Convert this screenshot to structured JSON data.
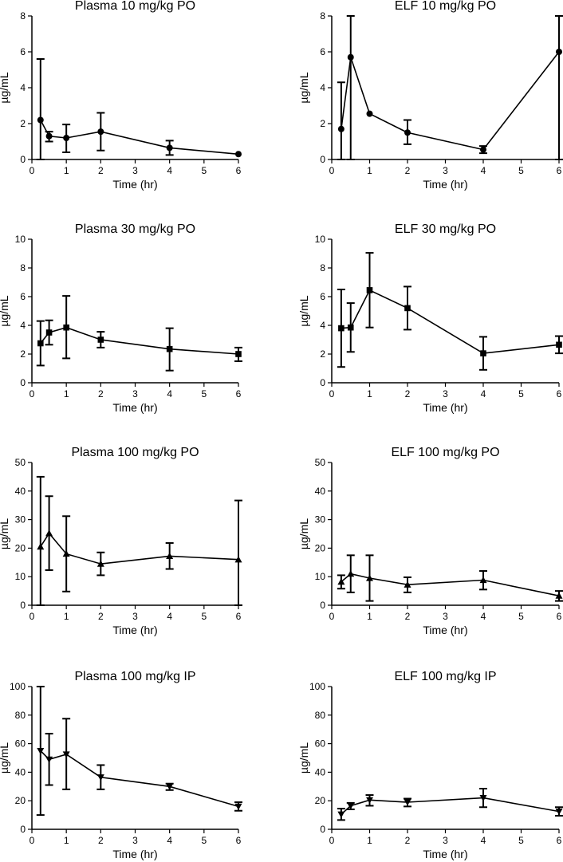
{
  "chart_data": [
    {
      "type": "line",
      "title": "Plasma 10 mg/kg PO",
      "xlabel": "Time (hr)",
      "ylabel": "µg/mL",
      "xlim": [
        0,
        6
      ],
      "ylim": [
        0,
        8
      ],
      "xticks": [
        "0",
        "1",
        "2",
        "3",
        "4",
        "5",
        "6"
      ],
      "yticks": [
        "0",
        "2",
        "4",
        "6",
        "8"
      ],
      "marker": "circle",
      "x": [
        0.25,
        0.5,
        1,
        2,
        4,
        6
      ],
      "y": [
        2.2,
        1.3,
        1.2,
        1.55,
        0.65,
        0.3
      ],
      "err_low": [
        0.0,
        1.0,
        0.4,
        0.5,
        0.25,
        0.3
      ],
      "err_high": [
        5.6,
        1.55,
        1.95,
        2.6,
        1.05,
        0.3
      ]
    },
    {
      "type": "line",
      "title": "ELF 10 mg/kg PO",
      "xlabel": "Time (hr)",
      "ylabel": "µg/mL",
      "xlim": [
        0,
        6
      ],
      "ylim": [
        0,
        8
      ],
      "xticks": [
        "0",
        "1",
        "2",
        "3",
        "4",
        "5",
        "6"
      ],
      "yticks": [
        "0",
        "2",
        "4",
        "6",
        "8"
      ],
      "marker": "circle",
      "x": [
        0.25,
        0.5,
        1,
        2,
        4,
        6
      ],
      "y": [
        1.7,
        5.7,
        2.55,
        1.5,
        0.55,
        6.0
      ],
      "err_low": [
        0.0,
        0.0,
        2.55,
        0.85,
        0.35,
        0.0
      ],
      "err_high": [
        4.3,
        8.0,
        2.55,
        2.2,
        0.75,
        8.0
      ]
    },
    {
      "type": "line",
      "title": "Plasma 30 mg/kg PO",
      "xlabel": "Time (hr)",
      "ylabel": "µg/mL",
      "xlim": [
        0,
        6
      ],
      "ylim": [
        0,
        10
      ],
      "xticks": [
        "0",
        "1",
        "2",
        "3",
        "4",
        "5",
        "6"
      ],
      "yticks": [
        "0",
        "2",
        "4",
        "6",
        "8",
        "10"
      ],
      "marker": "square",
      "x": [
        0.25,
        0.5,
        1,
        2,
        4,
        6
      ],
      "y": [
        2.75,
        3.5,
        3.85,
        3.0,
        2.35,
        2.0
      ],
      "err_low": [
        1.2,
        2.65,
        1.7,
        2.45,
        0.85,
        1.5
      ],
      "err_high": [
        4.3,
        4.35,
        6.05,
        3.55,
        3.8,
        2.45
      ]
    },
    {
      "type": "line",
      "title": "ELF 30 mg/kg PO",
      "xlabel": "Time (hr)",
      "ylabel": "µg/mL",
      "xlim": [
        0,
        6
      ],
      "ylim": [
        0,
        10
      ],
      "xticks": [
        "0",
        "1",
        "2",
        "3",
        "4",
        "5",
        "6"
      ],
      "yticks": [
        "0",
        "2",
        "4",
        "6",
        "8",
        "10"
      ],
      "marker": "square",
      "x": [
        0.25,
        0.5,
        1,
        2,
        4,
        6
      ],
      "y": [
        3.8,
        3.85,
        6.45,
        5.2,
        2.05,
        2.65
      ],
      "err_low": [
        1.1,
        2.15,
        3.85,
        3.7,
        0.9,
        2.05
      ],
      "err_high": [
        6.5,
        5.55,
        9.05,
        6.7,
        3.2,
        3.25
      ]
    },
    {
      "type": "line",
      "title": "Plasma 100 mg/kg PO",
      "xlabel": "Time (hr)",
      "ylabel": "µg/mL",
      "xlim": [
        0,
        6
      ],
      "ylim": [
        0,
        50
      ],
      "xticks": [
        "0",
        "1",
        "2",
        "3",
        "4",
        "5",
        "6"
      ],
      "yticks": [
        "0",
        "10",
        "20",
        "30",
        "40",
        "50"
      ],
      "marker": "triangle-up",
      "x": [
        0.25,
        0.5,
        1,
        2,
        4,
        6
      ],
      "y": [
        20.5,
        25.2,
        18.0,
        14.5,
        17.2,
        16.0
      ],
      "err_low": [
        0.0,
        12.3,
        4.8,
        10.5,
        12.7,
        0.0
      ],
      "err_high": [
        45.0,
        38.2,
        31.2,
        18.5,
        21.8,
        36.7
      ]
    },
    {
      "type": "line",
      "title": "ELF 100 mg/kg PO",
      "xlabel": "Time (hr)",
      "ylabel": "µg/mL",
      "xlim": [
        0,
        6
      ],
      "ylim": [
        0,
        50
      ],
      "xticks": [
        "0",
        "1",
        "2",
        "3",
        "4",
        "5",
        "6"
      ],
      "yticks": [
        "0",
        "10",
        "20",
        "30",
        "40",
        "50"
      ],
      "marker": "triangle-up",
      "x": [
        0.25,
        0.5,
        1,
        2,
        4,
        6
      ],
      "y": [
        8.2,
        11.0,
        9.5,
        7.2,
        8.8,
        3.3
      ],
      "err_low": [
        5.8,
        4.5,
        1.5,
        4.5,
        5.5,
        1.5
      ],
      "err_high": [
        10.5,
        17.5,
        17.5,
        9.8,
        12.0,
        5.0
      ]
    },
    {
      "type": "line",
      "title": "Plasma 100 mg/kg IP",
      "xlabel": "Time (hr)",
      "ylabel": "µg/mL",
      "xlim": [
        0,
        6
      ],
      "ylim": [
        0,
        100
      ],
      "xticks": [
        "0",
        "1",
        "2",
        "3",
        "4",
        "5",
        "6"
      ],
      "yticks": [
        "0",
        "20",
        "40",
        "60",
        "80",
        "100"
      ],
      "marker": "triangle-down",
      "x": [
        0.25,
        0.5,
        1,
        2,
        4,
        6
      ],
      "y": [
        55.0,
        49.0,
        52.5,
        36.5,
        30.0,
        16.0
      ],
      "err_low": [
        10.0,
        31.0,
        28.0,
        28.0,
        27.5,
        13.0
      ],
      "err_high": [
        100.0,
        67.0,
        77.5,
        45.0,
        32.0,
        19.0
      ]
    },
    {
      "type": "line",
      "title": "ELF 100 mg/kg IP",
      "xlabel": "Time (hr)",
      "ylabel": "µg/mL",
      "xlim": [
        0,
        6
      ],
      "ylim": [
        0,
        100
      ],
      "xticks": [
        "0",
        "1",
        "2",
        "3",
        "4",
        "5",
        "6"
      ],
      "yticks": [
        "0",
        "20",
        "40",
        "60",
        "80",
        "100"
      ],
      "marker": "triangle-down",
      "x": [
        0.25,
        0.5,
        1,
        2,
        4,
        6
      ],
      "y": [
        10.5,
        16.5,
        20.5,
        19.0,
        22.0,
        12.5
      ],
      "err_low": [
        6.5,
        14.0,
        16.5,
        16.0,
        15.5,
        9.5
      ],
      "err_high": [
        14.5,
        18.5,
        24.0,
        21.5,
        28.5,
        15.5
      ]
    }
  ]
}
